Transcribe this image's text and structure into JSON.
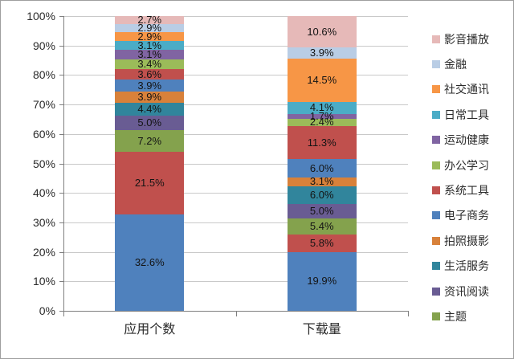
{
  "figure": {
    "background": "#FFFFFF",
    "border_color": "#9E9E9E"
  },
  "chart_data": {
    "type": "bar",
    "variant": "stacked-100-percent",
    "grid": true,
    "data_labels": true,
    "categories": [
      "应用个数",
      "下载量"
    ],
    "series": [
      {
        "name": "",
        "color": "#4F81BD",
        "values": [
          32.6,
          19.9
        ]
      },
      {
        "name": "",
        "color": "#C0504D",
        "values": [
          21.5,
          5.8
        ]
      },
      {
        "name": "主题",
        "color": "#84A24D",
        "values": [
          7.2,
          5.4
        ]
      },
      {
        "name": "资讯阅读",
        "color": "#695C93",
        "values": [
          5.0,
          5.0
        ]
      },
      {
        "name": "生活服务",
        "color": "#31859C",
        "values": [
          4.4,
          6.0
        ]
      },
      {
        "name": "拍照摄影",
        "color": "#D8813A",
        "values": [
          3.9,
          3.1
        ]
      },
      {
        "name": "电子商务",
        "color": "#4F81BD",
        "values": [
          3.9,
          6.0
        ]
      },
      {
        "name": "系统工具",
        "color": "#C0504D",
        "values": [
          3.6,
          11.3
        ]
      },
      {
        "name": "办公学习",
        "color": "#9BBB59",
        "values": [
          3.4,
          2.4
        ]
      },
      {
        "name": "运动健康",
        "color": "#8064A2",
        "values": [
          3.1,
          1.7
        ]
      },
      {
        "name": "日常工具",
        "color": "#4BACC6",
        "values": [
          3.1,
          4.1
        ]
      },
      {
        "name": "社交通讯",
        "color": "#F79646",
        "values": [
          2.9,
          14.5
        ]
      },
      {
        "name": "金融",
        "color": "#B9CDE5",
        "values": [
          2.9,
          3.9
        ]
      },
      {
        "name": "影音播放",
        "color": "#E6B9B8",
        "values": [
          2.7,
          10.6
        ]
      }
    ],
    "y_axis": {
      "min": 0,
      "max": 100,
      "step": 10,
      "tick_labels": [
        "0%",
        "10%",
        "20%",
        "30%",
        "40%",
        "50%",
        "60%",
        "70%",
        "80%",
        "90%",
        "100%"
      ]
    },
    "legend": {
      "position": "right",
      "entries": [
        {
          "label": "影音播放",
          "color": "#E6B9B8"
        },
        {
          "label": "金融",
          "color": "#B9CDE5"
        },
        {
          "label": "社交通讯",
          "color": "#F79646"
        },
        {
          "label": "日常工具",
          "color": "#4BACC6"
        },
        {
          "label": "运动健康",
          "color": "#8064A2"
        },
        {
          "label": "办公学习",
          "color": "#9BBB59"
        },
        {
          "label": "系统工具",
          "color": "#C0504D"
        },
        {
          "label": "电子商务",
          "color": "#4F81BD"
        },
        {
          "label": "拍照摄影",
          "color": "#D8813A"
        },
        {
          "label": "生活服务",
          "color": "#31859C"
        },
        {
          "label": "资讯阅读",
          "color": "#695C93"
        },
        {
          "label": "主题",
          "color": "#84A24D"
        }
      ]
    }
  }
}
